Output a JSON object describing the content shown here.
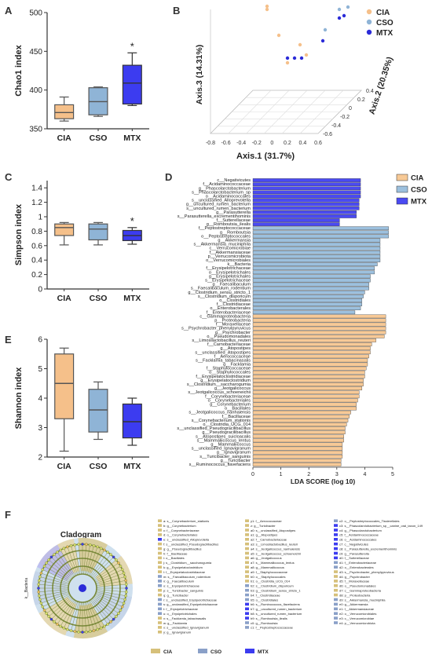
{
  "panels": {
    "A": "A",
    "B": "B",
    "C": "C",
    "D": "D",
    "E": "E",
    "F": "F"
  },
  "colors": {
    "CIA": "#f5c08a",
    "CSO": "#8fb4d6",
    "MTX": "#3c3cf0",
    "MTX_dark": "#2b2bd8",
    "CSO_bar": "#5b86b8",
    "CIA_bar": "#f0a860"
  },
  "chart_data": [
    {
      "id": "A",
      "type": "box",
      "ylabel": "Chao1 index",
      "ylim": [
        350,
        500
      ],
      "yticks": [
        350,
        400,
        450,
        500
      ],
      "categories": [
        "CIA",
        "CSO",
        "MTX"
      ],
      "boxes": [
        {
          "min": 360,
          "q1": 363,
          "median": 371,
          "q3": 381,
          "max": 391
        },
        {
          "min": 366,
          "q1": 368,
          "median": 385,
          "q3": 403,
          "max": 404
        },
        {
          "min": 380,
          "q1": 382,
          "median": 409,
          "q3": 432,
          "max": 448
        }
      ],
      "annotations": [
        {
          "category": "MTX",
          "text": "*"
        }
      ]
    },
    {
      "id": "B",
      "type": "scatter3d",
      "xlabel": "Axis.1 (31.7%)",
      "ylabel": "Axis.2 (20.35%)",
      "zlabel": "Axis.3 (14.31%)",
      "xticks": [
        -0.8,
        -0.6,
        -0.4,
        -0.2,
        0,
        0.2,
        0.4,
        0.6
      ],
      "yticks": [
        0.4,
        0.2,
        0,
        -0.2,
        -0.4,
        -0.6
      ],
      "legend": [
        "CIA",
        "CSO",
        "MTX"
      ]
    },
    {
      "id": "C",
      "type": "box",
      "ylabel": "Simpson index",
      "ylim": [
        0.0,
        1.5
      ],
      "yticks": [
        0.0,
        0.2,
        0.4,
        0.6,
        0.8,
        1.0,
        1.2,
        1.4
      ],
      "categories": [
        "CIA",
        "CSO",
        "MTX"
      ],
      "boxes": [
        {
          "min": 0.61,
          "q1": 0.74,
          "median": 0.85,
          "q3": 0.9,
          "max": 0.92
        },
        {
          "min": 0.61,
          "q1": 0.68,
          "median": 0.83,
          "q3": 0.9,
          "max": 0.92
        },
        {
          "min": 0.62,
          "q1": 0.67,
          "median": 0.74,
          "q3": 0.81,
          "max": 0.85
        }
      ],
      "annotations": [
        {
          "category": "MTX",
          "text": "*"
        }
      ]
    },
    {
      "id": "E",
      "type": "box",
      "ylabel": "Shannon index",
      "ylim": [
        2,
        6
      ],
      "yticks": [
        2,
        3,
        4,
        5,
        6
      ],
      "categories": [
        "CIA",
        "CSO",
        "MTX"
      ],
      "boxes": [
        {
          "min": 2.2,
          "q1": 3.3,
          "median": 4.5,
          "q3": 5.5,
          "max": 5.7
        },
        {
          "min": 2.6,
          "q1": 2.85,
          "median": 3.6,
          "q3": 4.3,
          "max": 4.55
        },
        {
          "min": 2.4,
          "q1": 2.65,
          "median": 3.2,
          "q3": 3.8,
          "max": 4.0
        }
      ]
    },
    {
      "id": "D",
      "type": "bar",
      "orientation": "horizontal",
      "xlabel": "LDA SCORE (log 10)",
      "xlim": [
        0,
        5
      ],
      "xticks": [
        0,
        1,
        2,
        3,
        4,
        5
      ],
      "legend": [
        "CIA",
        "CSO",
        "MTX"
      ],
      "groups": [
        {
          "name": "MTX",
          "items": [
            [
              "c__Negativicutes",
              3.85
            ],
            [
              "f__Acidaminococcaceae",
              3.85
            ],
            [
              "g__Phascolarctobacterium",
              3.85
            ],
            [
              "s__Phascolarctobacterium_sp",
              3.85
            ],
            [
              "o__Acidaminococcales",
              3.85
            ],
            [
              "s__unclassified_Alloprevotella",
              3.8
            ],
            [
              "g__uncultured_rumen_bacterium",
              3.8
            ],
            [
              "s__uncultured_rumen_bacterium",
              3.8
            ],
            [
              "g__Parasutterella",
              3.7
            ],
            [
              "s__Parasutterella_excrementihominis",
              3.7
            ],
            [
              "f__Sutterellaceae",
              3.1
            ],
            [
              "g__Romboutsia_ilealis",
              3.1
            ]
          ]
        },
        {
          "name": "CSO",
          "items": [
            [
              "f__Peptostreptococcaceae",
              4.85
            ],
            [
              "g__Romboutsia",
              4.85
            ],
            [
              "o__Peptostreptococcales",
              4.85
            ],
            [
              "g__Akkermansia",
              4.55
            ],
            [
              "s__Akkermansia_muciniphila",
              4.55
            ],
            [
              "c__Verrucomicrobiae",
              4.55
            ],
            [
              "f__Akkermansiaceae",
              4.55
            ],
            [
              "p__Verrucomicrobiota",
              4.55
            ],
            [
              "o__Verrucomicrobiales",
              4.55
            ],
            [
              "k__Bacteria",
              4.45
            ],
            [
              "f__Erysipelotrichaceae",
              4.35
            ],
            [
              "o__Erysipelotrichales",
              4.35
            ],
            [
              "g__Erysipelotrichales",
              4.2
            ],
            [
              "s__Erysipelotrichaceae",
              4.2
            ],
            [
              "g__Faecalibaculum",
              4.15
            ],
            [
              "s__Faecalibaculum_rodentium",
              4.15
            ],
            [
              "g__Clostridium_sensu_stricto_1",
              4.0
            ],
            [
              "s__Clostridium_disporicum",
              3.95
            ],
            [
              "o__Clostridiales",
              3.9
            ],
            [
              "f__Clostridiaceae",
              3.9
            ],
            [
              "o__Enterobacterales",
              3.85
            ],
            [
              "f__Enterobacteriaceae",
              3.65
            ]
          ]
        },
        {
          "name": "CIA",
          "items": [
            [
              "c__Gammaproteobacteria",
              4.75
            ],
            [
              "p__Proteobacteria",
              4.75
            ],
            [
              "f__Moraxellaceae",
              4.75
            ],
            [
              "s__Psychrobacter_phenylpyruvicus",
              4.75
            ],
            [
              "g__Psychrobacter",
              4.75
            ],
            [
              "o__Pseudomonadales",
              4.7
            ],
            [
              "s__Limosilactobacillus_reuteri",
              4.4
            ],
            [
              "f__Carnobacteriaceae",
              4.25
            ],
            [
              "g__Atopostipes",
              4.2
            ],
            [
              "s__unclassified_Atopostipes",
              4.2
            ],
            [
              "f__Aerococcaceae",
              4.15
            ],
            [
              "s__Facklamia_tabacinasalis",
              4.1
            ],
            [
              "g__Facklamia",
              4.1
            ],
            [
              "f__Staphylococcaceae",
              4.05
            ],
            [
              "o__Staphylococcales",
              4.0
            ],
            [
              "f__Erysipelatoclostridiaceae",
              4.0
            ],
            [
              "g__Erysipelatoclostridium",
              3.95
            ],
            [
              "s__Clostridium__saccharogumia",
              3.95
            ],
            [
              "g__Jeotgalicoccus",
              3.9
            ],
            [
              "s__Jeotgalicoccus_schoeneichii",
              3.8
            ],
            [
              "f__Corynebacteriaceae",
              3.8
            ],
            [
              "o__Corynebacteriales",
              3.75
            ],
            [
              "g__Corynebacterium",
              3.7
            ],
            [
              "o__Bacillales",
              3.7
            ],
            [
              "s__Jeotgalicoccus_nanhaiensis",
              3.5
            ],
            [
              "f__Bacillaceae",
              3.45
            ],
            [
              "s__Corynebacterium_stationis",
              3.4
            ],
            [
              "o__Clostridia_UCG_014",
              3.35
            ],
            [
              "s__unclassified_Pseudogracilibacillus",
              3.3
            ],
            [
              "g__Pseudogracilibacillus",
              3.3
            ],
            [
              "s__Atopostipes_suicloacalis",
              3.25
            ],
            [
              "s__Mammaliicoccus_lentus",
              3.25
            ],
            [
              "g__Mammaliicoccus",
              3.2
            ],
            [
              "s__unclassified_Ignavigranum",
              3.2
            ],
            [
              "g__Ignavigranum",
              3.2
            ],
            [
              "s__Turicibacter_sanguinis",
              3.2
            ],
            [
              "g__Turicibacter",
              3.15
            ],
            [
              "s__Ruminococcus_flavefaciens",
              3.15
            ]
          ]
        }
      ]
    }
  ],
  "cladogram": {
    "title": "Cladogram",
    "side_label": "k__Bacteria",
    "legend": [
      "CIA",
      "CSO",
      "MTX"
    ],
    "key_columns": [
      [
        [
          "CIA",
          "a: s__Corynebacterium_stationis"
        ],
        [
          "CIA",
          "b: g__Corynebacterium"
        ],
        [
          "CIA",
          "c: f__Corynebacteriaceae"
        ],
        [
          "CIA",
          "d: o__Corynebacteriales"
        ],
        [
          "MTX",
          "e: s__unclassified_Alloprevotella"
        ],
        [
          "CIA",
          "f: s__unclassified_Pseudogracilibacillus"
        ],
        [
          "CIA",
          "g: g__Pseudogracilibacillus"
        ],
        [
          "CIA",
          "h: f__Bacillaceae"
        ],
        [
          "CIA",
          "i: o__Bacillales"
        ],
        [
          "CIA",
          "j: s__Clostridium__saccharogumia"
        ],
        [
          "CIA",
          "k: g__Erysipelatoclostridium"
        ],
        [
          "CIA",
          "l: f__Erysipelatoclostridiaceae"
        ],
        [
          "CSO",
          "m: s__Faecalibaculum_rodentium"
        ],
        [
          "CSO",
          "n: g__Faecalibaculum"
        ],
        [
          "CSO",
          "o: s__Erysipelotrichaceae"
        ],
        [
          "CIA",
          "p: s__Turicibacter_sanguinis"
        ],
        [
          "CIA",
          "q: g__Turicibacter"
        ],
        [
          "CSO",
          "r: s__unclassified_Erysipelotrichaceae"
        ],
        [
          "CSO",
          "s: g__unclassified_Erysipelotrichaceae"
        ],
        [
          "CSO",
          "t: f__Erysipelotrichaceae"
        ],
        [
          "CSO",
          "u: o__Erysipelotrichales"
        ],
        [
          "CIA",
          "v: s__Facklamia_tabacinasalis"
        ],
        [
          "CIA",
          "w: g__Facklamia"
        ],
        [
          "CIA",
          "x: s__unclassified_Ignavigranum"
        ],
        [
          "CIA",
          "y: g__Ignavigranum"
        ]
      ],
      [
        [
          "CIA",
          "y1: f__Aerococcaceae"
        ],
        [
          "CIA",
          "z: g__Turicibacter"
        ],
        [
          "CIA",
          "a0: s__unclassified_Atopostipes"
        ],
        [
          "CIA",
          "a1: g__Atopostipes"
        ],
        [
          "CIA",
          "a2: f__Carnobacteriaceae"
        ],
        [
          "CIA",
          "a3: s__Limosilactobacillus_reuteri"
        ],
        [
          "CIA",
          "a4: s__Jeotgalicoccus_nanhaiensis"
        ],
        [
          "CIA",
          "a5: s__Jeotgalicoccus_schoeneichii"
        ],
        [
          "CIA",
          "a6: g__Jeotgalicoccus"
        ],
        [
          "CIA",
          "a7: s__Mammaliicoccus_lentus"
        ],
        [
          "CIA",
          "a8: g__Mammaliicoccus"
        ],
        [
          "CIA",
          "a9: f__Staphylococcaceae"
        ],
        [
          "CIA",
          "b0: o__Staphylococcales"
        ],
        [
          "CIA",
          "b1: o__Clostridia_UCG_014"
        ],
        [
          "CSO",
          "b2: s__Clostridium_disporicum"
        ],
        [
          "CSO",
          "b3: g__Clostridium_sensu_stricto_1"
        ],
        [
          "CSO",
          "b4: f__Clostridiaceae"
        ],
        [
          "CSO",
          "b5: o__Clostridiales"
        ],
        [
          "MTX",
          "b6: s__Ruminococcus_flavefaciens"
        ],
        [
          "MTX",
          "b7: g__uncultured_rumen_bacterium"
        ],
        [
          "MTX",
          "b8: s__uncultured_rumen_bacterium"
        ],
        [
          "MTX",
          "b9: s__Romboutsia_ilealis"
        ],
        [
          "CSO",
          "c0: g__Romboutsia"
        ],
        [
          "CSO",
          "c1: f__Peptostreptococcaceae"
        ]
      ],
      [
        [
          "CSO",
          "c2: o__Peptostreptococcales_Tissierellales"
        ],
        [
          "MTX",
          "c3: s__Phascolarctobacterium_sp__canine_oral_taxon_149"
        ],
        [
          "MTX",
          "c4: g__Phascolarctobacterium"
        ],
        [
          "MTX",
          "c5: f__Acidaminococcaceae"
        ],
        [
          "MTX",
          "c6: o__Acidaminococcales"
        ],
        [
          "MTX",
          "c7: c__Negativicutes"
        ],
        [
          "MTX",
          "c8: s__Parasutterella_excrementihominis"
        ],
        [
          "MTX",
          "c9: g__Parasutterella"
        ],
        [
          "MTX",
          "d0: f__Sutterellaceae"
        ],
        [
          "CSO",
          "d1: f__Enterobacteriaceae"
        ],
        [
          "CSO",
          "d2: o__Enterobacterales"
        ],
        [
          "CIA",
          "d3: s__Psychrobacter_phenylpyruvicus"
        ],
        [
          "CIA",
          "d4: g__Psychrobacter"
        ],
        [
          "CIA",
          "d5: f__Moraxellaceae"
        ],
        [
          "CIA",
          "d6: o__Pseudomonadales"
        ],
        [
          "CIA",
          "d7: c__Gammaproteobacteria"
        ],
        [
          "CIA",
          "d8: p__Proteobacteria"
        ],
        [
          "CSO",
          "d9: s__Akkermansia_muciniphila"
        ],
        [
          "CSO",
          "e0: g__Akkermansia"
        ],
        [
          "CSO",
          "e1: f__Akkermansiaceae"
        ],
        [
          "CSO",
          "e2: o__Verrucomicrobiales"
        ],
        [
          "CSO",
          "e3: c__Verrucomicrobiae"
        ],
        [
          "CSO",
          "e4: p__Verrucomicrobiota"
        ]
      ]
    ]
  }
}
